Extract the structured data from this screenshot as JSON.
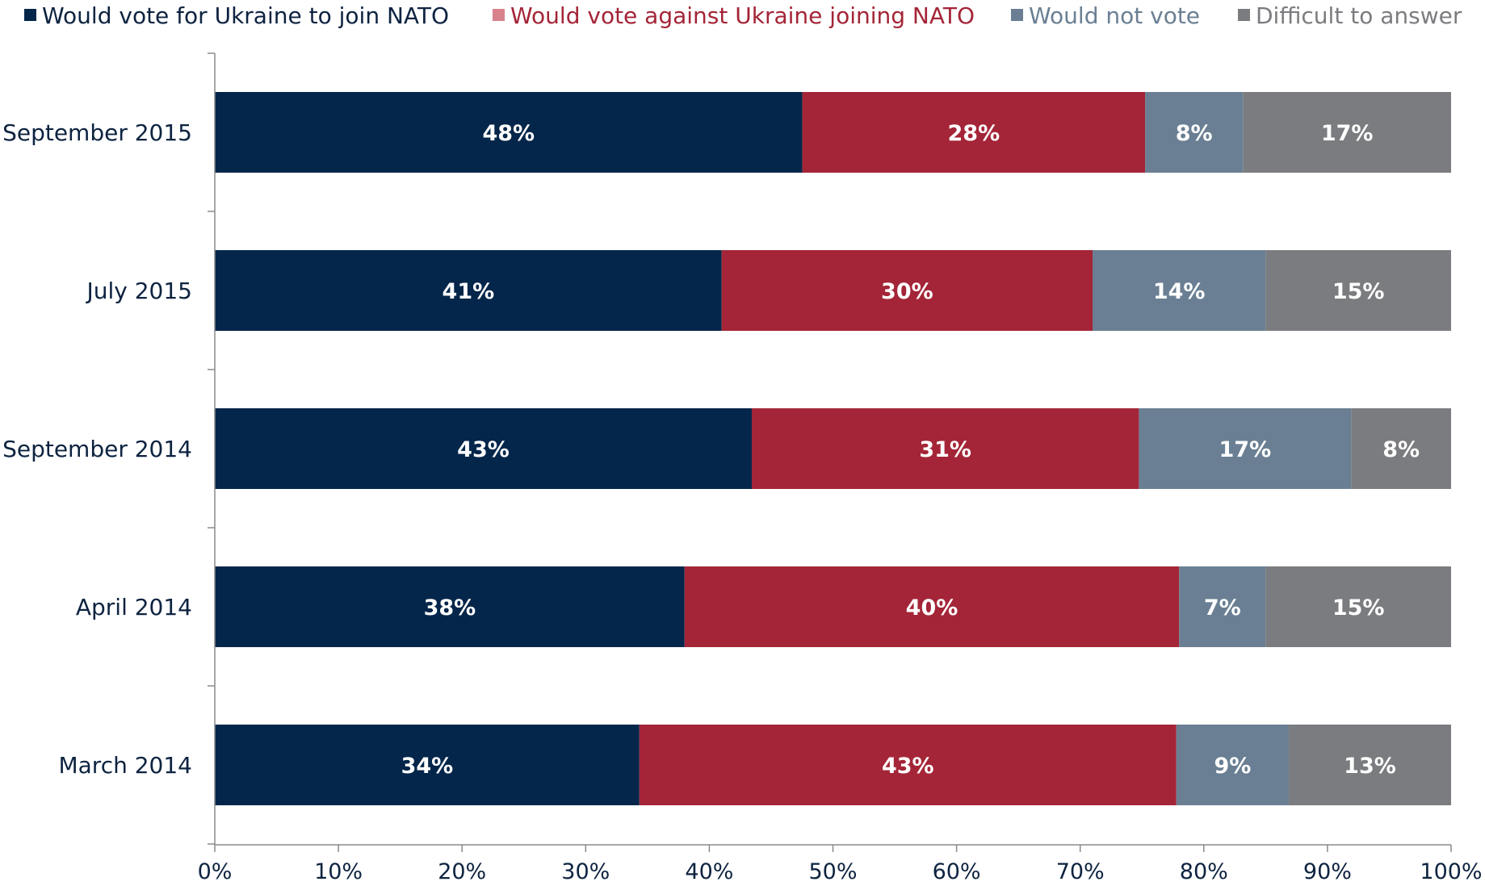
{
  "chart_data": {
    "type": "bar",
    "orientation": "horizontal",
    "stacked": "percent",
    "categories": [
      "September 2015",
      "July 2015",
      "September 2014",
      "April 2014",
      "March 2014"
    ],
    "series": [
      {
        "name": "Would vote for Ukraine to join NATO",
        "color": "#04264a",
        "legend_color": "#04264a",
        "values": [
          48,
          41,
          43,
          38,
          34
        ],
        "labels": [
          "48%",
          "41%",
          "43%",
          "38%",
          "34%"
        ]
      },
      {
        "name": "Would vote against Ukraine joining NATO",
        "color": "#a42537",
        "legend_color": "#d8828c",
        "values": [
          28,
          30,
          31,
          40,
          43
        ],
        "labels": [
          "28%",
          "30%",
          "31%",
          "40%",
          "43%"
        ]
      },
      {
        "name": "Would not vote",
        "color": "#6a7f93",
        "legend_color": "#6a7f93",
        "values": [
          8,
          14,
          17,
          7,
          9
        ],
        "labels": [
          "8%",
          "14%",
          "17%",
          "7%",
          "9%"
        ]
      },
      {
        "name": "Difficult to answer",
        "color": "#7b7c7f",
        "legend_color": "#7b7c7f",
        "values": [
          17,
          15,
          8,
          15,
          13
        ],
        "labels": [
          "17%",
          "15%",
          "8%",
          "15%",
          "13%"
        ]
      }
    ],
    "x_ticks": [
      "0%",
      "10%",
      "20%",
      "30%",
      "40%",
      "50%",
      "60%",
      "70%",
      "80%",
      "90%",
      "100%"
    ],
    "xlim": [
      0,
      100
    ],
    "grid": false,
    "legend_position": "top"
  }
}
